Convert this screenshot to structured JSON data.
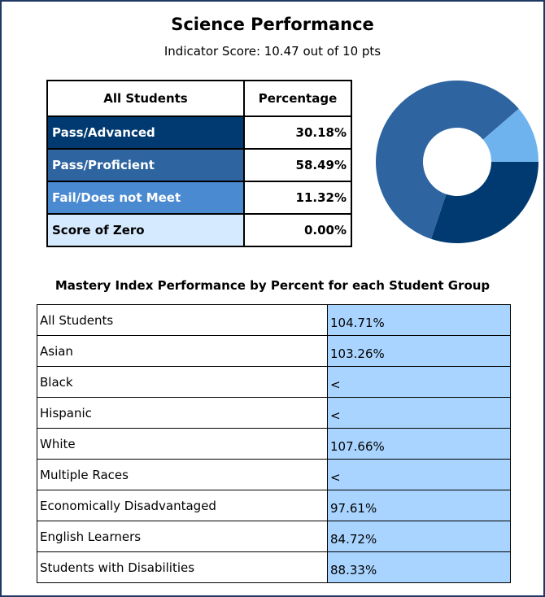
{
  "title": "Science Performance",
  "subtitle": "Indicator Score: 10.47 out of 10 pts",
  "summary_header": [
    "All Students",
    "Percentage"
  ],
  "chart_data": {
    "type": "pie",
    "categories": [
      "Pass/Advanced",
      "Pass/Proficient",
      "Fail/Does not Meet",
      "Score of Zero"
    ],
    "values": [
      30.18,
      58.49,
      11.32,
      0.0
    ],
    "value_labels": [
      "30.18%",
      "58.49%",
      "11.32%",
      "0.00%"
    ],
    "colors": [
      "#003a70",
      "#2e64a0",
      "#6fb3ee",
      "#cfe6fb"
    ]
  },
  "mastery": {
    "title": "Mastery Index Performance by Percent for each Student Group",
    "rows": [
      [
        "All Students",
        "104.71%"
      ],
      [
        "Asian",
        "103.26%"
      ],
      [
        "Black",
        "<"
      ],
      [
        "Hispanic",
        "<"
      ],
      [
        "White",
        "107.66%"
      ],
      [
        "Multiple Races",
        "<"
      ],
      [
        "Economically Disadvantaged",
        "97.61%"
      ],
      [
        "English Learners",
        "84.72%"
      ],
      [
        "Students with Disabilities",
        "88.33%"
      ]
    ]
  }
}
